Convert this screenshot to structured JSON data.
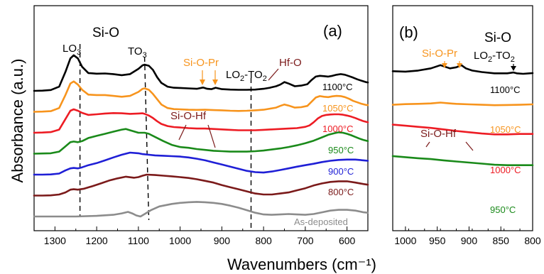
{
  "chart_data": [
    {
      "type": "line",
      "panel_label": "(a)",
      "ylabel": "Absorbance (a.u.)",
      "xlabel": "Wavenumbers (cm⁻¹)",
      "xlim": [
        1350,
        550
      ],
      "x_ticks": [
        1300,
        1200,
        1100,
        1000,
        900,
        800,
        700,
        600
      ],
      "x_tick_labels": [
        "1300",
        "1200",
        "1100",
        "1000",
        "900",
        "800",
        "700",
        "600"
      ],
      "series": [
        {
          "name": "1100°C",
          "color": "#000000",
          "baseline": 6.0,
          "x": [
            1350,
            1330,
            1310,
            1290,
            1275,
            1263,
            1255,
            1245,
            1235,
            1220,
            1200,
            1180,
            1160,
            1140,
            1120,
            1100,
            1090,
            1085,
            1075,
            1065,
            1055,
            1045,
            1030,
            1015,
            1000,
            980,
            960,
            945,
            935,
            925,
            915,
            900,
            880,
            860,
            840,
            820,
            800,
            785,
            770,
            760,
            750,
            740,
            725,
            710,
            695,
            685,
            675,
            665,
            655,
            645,
            635,
            625,
            615,
            605,
            595,
            585,
            575,
            565,
            555,
            550
          ],
          "y": [
            0.0,
            0.01,
            0.04,
            0.2,
            0.9,
            1.55,
            1.7,
            1.55,
            1.15,
            0.85,
            0.82,
            0.83,
            0.8,
            0.75,
            0.8,
            1.05,
            1.22,
            1.25,
            1.2,
            1.0,
            0.65,
            0.38,
            0.2,
            0.15,
            0.14,
            0.12,
            0.1,
            0.16,
            0.1,
            0.08,
            0.15,
            0.08,
            0.06,
            0.05,
            0.05,
            0.06,
            0.1,
            0.15,
            0.22,
            0.3,
            0.42,
            0.35,
            0.22,
            0.25,
            0.32,
            0.52,
            0.68,
            0.72,
            0.7,
            0.68,
            0.72,
            0.77,
            0.8,
            0.77,
            0.7,
            0.63,
            0.55,
            0.48,
            0.42,
            0.4
          ]
        },
        {
          "name": "1050°C",
          "color": "#f7941d",
          "baseline": 5.0,
          "x": [
            1350,
            1330,
            1310,
            1290,
            1275,
            1263,
            1255,
            1245,
            1235,
            1220,
            1200,
            1180,
            1160,
            1140,
            1120,
            1100,
            1090,
            1085,
            1075,
            1065,
            1055,
            1045,
            1030,
            1015,
            1000,
            980,
            960,
            940,
            920,
            900,
            880,
            860,
            840,
            820,
            800,
            785,
            770,
            760,
            750,
            740,
            725,
            710,
            695,
            685,
            675,
            665,
            655,
            645,
            635,
            625,
            615,
            605,
            595,
            585,
            575,
            565,
            555,
            550
          ],
          "y": [
            0.0,
            0.01,
            0.03,
            0.18,
            0.8,
            1.35,
            1.45,
            1.3,
            1.05,
            0.82,
            0.8,
            0.8,
            0.76,
            0.72,
            0.76,
            0.95,
            1.1,
            1.12,
            1.05,
            0.85,
            0.6,
            0.35,
            0.18,
            0.13,
            0.12,
            0.1,
            0.09,
            0.1,
            0.08,
            0.07,
            0.05,
            0.04,
            0.05,
            0.07,
            0.1,
            0.15,
            0.2,
            0.28,
            0.35,
            0.3,
            0.2,
            0.22,
            0.28,
            0.48,
            0.68,
            0.75,
            0.72,
            0.7,
            0.74,
            0.76,
            0.75,
            0.7,
            0.62,
            0.52,
            0.45,
            0.38,
            0.33,
            0.32
          ]
        },
        {
          "name": "1000°C",
          "color": "#ed1c24",
          "baseline": 4.0,
          "x": [
            1350,
            1330,
            1310,
            1290,
            1275,
            1263,
            1255,
            1245,
            1235,
            1220,
            1200,
            1180,
            1160,
            1140,
            1120,
            1100,
            1090,
            1085,
            1075,
            1065,
            1055,
            1045,
            1030,
            1015,
            1000,
            980,
            960,
            940,
            920,
            900,
            880,
            860,
            840,
            820,
            800,
            780,
            760,
            740,
            720,
            700,
            690,
            680,
            670,
            660,
            650,
            640,
            630,
            620,
            610,
            600,
            590,
            580,
            570,
            560,
            550
          ],
          "y": [
            0.0,
            0.01,
            0.03,
            0.15,
            0.65,
            1.05,
            1.12,
            1.05,
            0.95,
            0.85,
            0.88,
            0.92,
            0.94,
            0.93,
            0.9,
            0.92,
            0.93,
            0.9,
            0.82,
            0.7,
            0.55,
            0.42,
            0.32,
            0.27,
            0.25,
            0.22,
            0.2,
            0.2,
            0.18,
            0.16,
            0.14,
            0.12,
            0.12,
            0.12,
            0.14,
            0.16,
            0.18,
            0.2,
            0.22,
            0.28,
            0.35,
            0.5,
            0.68,
            0.8,
            0.85,
            0.87,
            0.88,
            0.88,
            0.86,
            0.82,
            0.77,
            0.7,
            0.62,
            0.55,
            0.5
          ]
        },
        {
          "name": "950°C",
          "color": "#1a8a1a",
          "baseline": 3.0,
          "x": [
            1350,
            1330,
            1310,
            1290,
            1275,
            1263,
            1255,
            1245,
            1235,
            1220,
            1200,
            1180,
            1160,
            1140,
            1130,
            1120,
            1100,
            1085,
            1075,
            1060,
            1040,
            1020,
            1000,
            980,
            960,
            940,
            920,
            900,
            880,
            860,
            840,
            820,
            800,
            780,
            760,
            740,
            720,
            700,
            680,
            660,
            645,
            630,
            620,
            610,
            600,
            590,
            580,
            570,
            560,
            550
          ],
          "y": [
            0.0,
            0.01,
            0.02,
            0.1,
            0.35,
            0.55,
            0.58,
            0.55,
            0.6,
            0.75,
            0.85,
            0.95,
            1.05,
            1.15,
            1.18,
            1.12,
            1.0,
            1.0,
            0.95,
            0.8,
            0.6,
            0.42,
            0.32,
            0.28,
            0.22,
            0.18,
            0.14,
            0.12,
            0.1,
            0.1,
            0.1,
            0.12,
            0.15,
            0.2,
            0.25,
            0.32,
            0.4,
            0.5,
            0.62,
            0.78,
            0.9,
            0.98,
            1.02,
            1.0,
            0.95,
            0.88,
            0.8,
            0.72,
            0.65,
            0.6
          ]
        },
        {
          "name": "900°C",
          "color": "#1f1fd6",
          "baseline": 2.0,
          "x": [
            1350,
            1330,
            1310,
            1290,
            1275,
            1263,
            1255,
            1245,
            1235,
            1220,
            1200,
            1180,
            1160,
            1140,
            1120,
            1100,
            1090,
            1075,
            1060,
            1040,
            1020,
            1000,
            980,
            960,
            940,
            920,
            900,
            880,
            860,
            840,
            820,
            800,
            780,
            760,
            740,
            720,
            700,
            680,
            660,
            640,
            620,
            600,
            580,
            560,
            550
          ],
          "y": [
            0.0,
            0.0,
            0.01,
            0.05,
            0.2,
            0.3,
            0.32,
            0.3,
            0.35,
            0.45,
            0.55,
            0.68,
            0.82,
            0.95,
            1.05,
            1.02,
            0.98,
            0.95,
            0.92,
            0.9,
            0.88,
            0.86,
            0.82,
            0.76,
            0.68,
            0.58,
            0.48,
            0.38,
            0.28,
            0.18,
            0.12,
            0.1,
            0.15,
            0.22,
            0.3,
            0.38,
            0.45,
            0.52,
            0.6,
            0.66,
            0.7,
            0.72,
            0.72,
            0.68,
            0.66
          ]
        },
        {
          "name": "800°C",
          "color": "#7b1a1a",
          "baseline": 1.0,
          "x": [
            1350,
            1330,
            1310,
            1290,
            1275,
            1263,
            1255,
            1245,
            1230,
            1210,
            1190,
            1170,
            1150,
            1130,
            1110,
            1100,
            1090,
            1080,
            1060,
            1040,
            1020,
            1000,
            980,
            960,
            940,
            920,
            900,
            880,
            860,
            840,
            820,
            800,
            780,
            760,
            740,
            720,
            700,
            680,
            660,
            640,
            620,
            600,
            580,
            560,
            550
          ],
          "y": [
            0.0,
            0.0,
            0.01,
            0.05,
            0.15,
            0.28,
            0.3,
            0.28,
            0.33,
            0.45,
            0.58,
            0.72,
            0.82,
            0.9,
            0.85,
            0.88,
            0.95,
            1.0,
            0.98,
            0.95,
            0.92,
            0.88,
            0.84,
            0.78,
            0.7,
            0.62,
            0.5,
            0.4,
            0.3,
            0.2,
            0.1,
            0.05,
            0.05,
            0.1,
            0.15,
            0.25,
            0.35,
            0.48,
            0.58,
            0.65,
            0.68,
            0.68,
            0.62,
            0.55,
            0.52
          ]
        },
        {
          "name": "As-deposited",
          "color": "#8c8c8c",
          "baseline": 0.0,
          "x": [
            1350,
            1300,
            1250,
            1200,
            1160,
            1140,
            1125,
            1115,
            1105,
            1095,
            1085,
            1070,
            1050,
            1020,
            1000,
            980,
            960,
            940,
            920,
            900,
            880,
            860,
            840,
            820,
            800,
            780,
            760,
            740,
            720,
            700,
            680,
            660,
            640,
            620,
            600,
            580,
            560,
            550
          ],
          "y": [
            0.0,
            0.0,
            0.0,
            0.03,
            0.08,
            0.15,
            0.22,
            0.15,
            0.05,
            0.0,
            0.12,
            0.3,
            0.48,
            0.6,
            0.65,
            0.68,
            0.7,
            0.68,
            0.65,
            0.6,
            0.52,
            0.42,
            0.3,
            0.18,
            0.1,
            0.08,
            0.1,
            0.12,
            0.1,
            0.08,
            0.12,
            0.2,
            0.28,
            0.32,
            0.32,
            0.28,
            0.2,
            0.18
          ]
        }
      ],
      "reference_lines_x": [
        1240,
        1075,
        830
      ],
      "annotations": [
        {
          "text": "Si-O",
          "color": "#000000"
        },
        {
          "text": "LO",
          "sub": "3",
          "color": "#000000"
        },
        {
          "text": "TO",
          "sub": "3",
          "color": "#000000"
        },
        {
          "text": "Si-O-Pr",
          "color": "#f7941d"
        },
        {
          "text": "LO",
          "sub": "2",
          "mid": "-TO",
          "sub2": "2",
          "color": "#000000"
        },
        {
          "text": "Hf-O",
          "color": "#7b1a1a"
        },
        {
          "text": "Si-O-Hf",
          "color": "#7b1a1a"
        }
      ]
    },
    {
      "type": "line",
      "panel_label": "(b)",
      "xlim": [
        1020,
        800
      ],
      "x_ticks": [
        1000,
        950,
        900,
        850,
        800
      ],
      "x_tick_labels": [
        "1000",
        "950",
        "900",
        "850",
        "800"
      ],
      "series": [
        {
          "name": "1100°C",
          "color": "#000000",
          "baseline": 6.0,
          "x": [
            1020,
            1000,
            980,
            960,
            950,
            945,
            940,
            930,
            920,
            912,
            905,
            895,
            880,
            860,
            840,
            830,
            825,
            815,
            805,
            800
          ],
          "y": [
            0.22,
            0.2,
            0.25,
            0.35,
            0.45,
            0.5,
            0.45,
            0.35,
            0.4,
            0.5,
            0.35,
            0.25,
            0.18,
            0.12,
            0.12,
            0.16,
            0.12,
            0.1,
            0.12,
            0.13
          ]
        },
        {
          "name": "1050°C",
          "color": "#f7941d",
          "baseline": 4.55,
          "x": [
            1020,
            1000,
            980,
            960,
            945,
            930,
            920,
            900,
            880,
            860,
            840,
            820,
            800
          ],
          "y": [
            0.12,
            0.15,
            0.16,
            0.18,
            0.22,
            0.18,
            0.16,
            0.14,
            0.12,
            0.1,
            0.11,
            0.12,
            0.14
          ]
        },
        {
          "name": "1000°C",
          "color": "#ed1c24",
          "baseline": 3.2,
          "x": [
            1020,
            1000,
            980,
            960,
            940,
            920,
            900,
            880,
            860,
            840,
            820,
            800
          ],
          "y": [
            0.55,
            0.5,
            0.45,
            0.4,
            0.33,
            0.26,
            0.2,
            0.14,
            0.1,
            0.1,
            0.12,
            0.12
          ]
        },
        {
          "name": "950°C",
          "color": "#1a8a1a",
          "baseline": 1.8,
          "x": [
            1020,
            1000,
            980,
            960,
            940,
            920,
            900,
            880,
            860,
            840,
            820,
            800
          ],
          "y": [
            0.5,
            0.45,
            0.4,
            0.36,
            0.3,
            0.25,
            0.2,
            0.15,
            0.1,
            0.08,
            0.08,
            0.08
          ]
        }
      ],
      "annotations": [
        {
          "text": "Si-O-Pr",
          "color": "#f7941d"
        },
        {
          "text": "Si-O",
          "color": "#000000"
        },
        {
          "text": "LO",
          "sub": "2",
          "mid": "-TO",
          "sub2": "2",
          "color": "#000000"
        },
        {
          "text": "Si-O-Hf",
          "color": "#7b1a1a"
        }
      ]
    }
  ]
}
